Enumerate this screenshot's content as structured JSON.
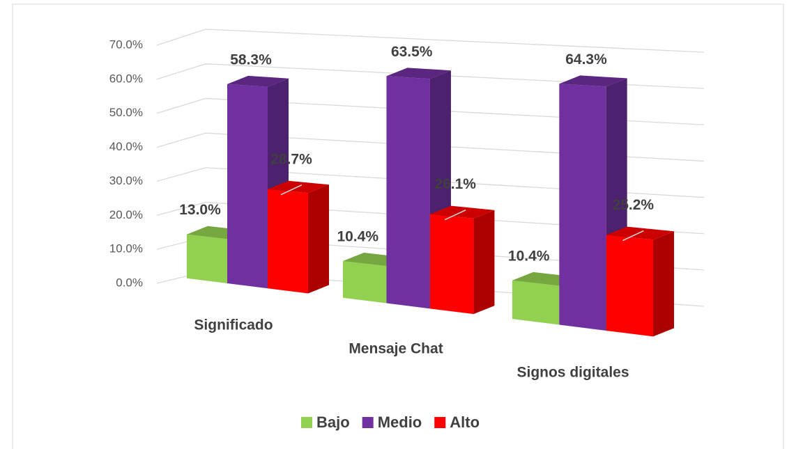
{
  "chart_data": {
    "type": "bar3d",
    "categories": [
      "Significado",
      "Mensaje Chat",
      "Signos digitales"
    ],
    "series": [
      {
        "name": "Bajo",
        "color": "#92d050",
        "values": [
          13.0,
          10.4,
          10.4
        ],
        "value_labels": [
          "13.0%",
          "10.4%",
          "10.4%"
        ]
      },
      {
        "name": "Medio",
        "color": "#7030a0",
        "values": [
          58.3,
          63.5,
          64.3
        ],
        "value_labels": [
          "58.3%",
          "63.5%",
          "64.3%"
        ]
      },
      {
        "name": "Alto",
        "color": "#ff0000",
        "values": [
          28.7,
          26.1,
          25.2
        ],
        "value_labels": [
          "28.7%",
          "26.1%",
          "25.2%"
        ]
      }
    ],
    "ylim": [
      0,
      70
    ],
    "yticks": [
      {
        "value": 0,
        "label": "0.0%"
      },
      {
        "value": 10,
        "label": "10.0%"
      },
      {
        "value": 20,
        "label": "20.0%"
      },
      {
        "value": 30,
        "label": "30.0%"
      },
      {
        "value": 40,
        "label": "40.0%"
      },
      {
        "value": 50,
        "label": "50.0%"
      },
      {
        "value": 60,
        "label": "60.0%"
      },
      {
        "value": 70,
        "label": "70.0%"
      }
    ],
    "grid": true,
    "legend": "bottom"
  }
}
